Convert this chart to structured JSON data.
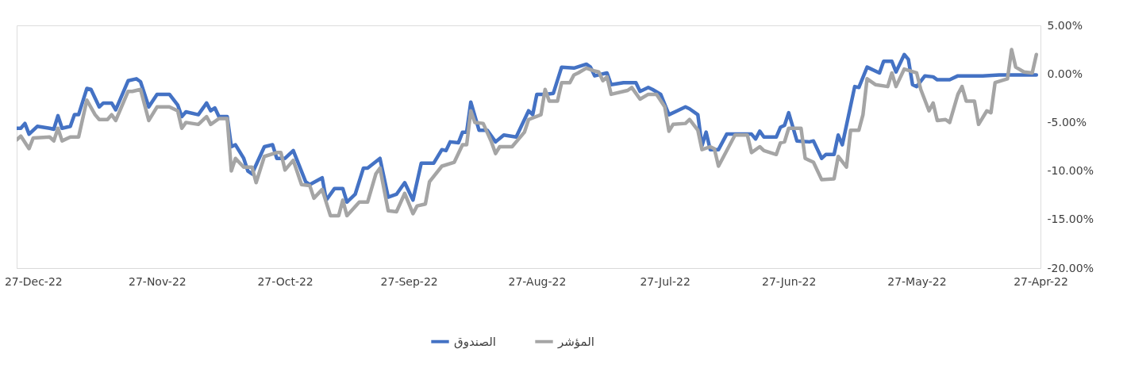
{
  "chart_data": {
    "type": "line",
    "xlim": [
      "2022-12-31",
      "2022-04-27"
    ],
    "xticks": [
      {
        "value": "2022-12-27",
        "label": "27-Dec-22"
      },
      {
        "value": "2022-11-27",
        "label": "27-Nov-22"
      },
      {
        "value": "2022-10-27",
        "label": "27-Oct-22"
      },
      {
        "value": "2022-09-27",
        "label": "27-Sep-22"
      },
      {
        "value": "2022-08-27",
        "label": "27-Aug-22"
      },
      {
        "value": "2022-07-27",
        "label": "27-Jul-22"
      },
      {
        "value": "2022-06-27",
        "label": "27-Jun-22"
      },
      {
        "value": "2022-05-27",
        "label": "27-May-22"
      },
      {
        "value": "2022-04-27",
        "label": "27-Apr-22"
      }
    ],
    "ylim": [
      -20,
      5
    ],
    "yticks": [
      {
        "value": 5,
        "label": "5.00%"
      },
      {
        "value": 0,
        "label": "0.00%"
      },
      {
        "value": -5,
        "label": "-5.00%"
      },
      {
        "value": -10,
        "label": "-10.00%"
      },
      {
        "value": -15,
        "label": "-15.00%"
      },
      {
        "value": -20,
        "label": "-20.00%"
      }
    ],
    "grid": false,
    "legend": "bottom",
    "marker": "none",
    "line_style": "solid",
    "series": [
      {
        "name": "الصندوق",
        "color": "#4472c4",
        "x": [
          "2022-12-31",
          "2022-12-30",
          "2022-12-29",
          "2022-12-28",
          "2022-12-26",
          "2022-12-23",
          "2022-12-22",
          "2022-12-21",
          "2022-12-20",
          "2022-12-18",
          "2022-12-17",
          "2022-12-16",
          "2022-12-14",
          "2022-12-13",
          "2022-12-11",
          "2022-12-10",
          "2022-12-08",
          "2022-12-07",
          "2022-12-04",
          "2022-12-02",
          "2022-12-01",
          "2022-11-29",
          "2022-11-27",
          "2022-11-24",
          "2022-11-22",
          "2022-11-21",
          "2022-11-20",
          "2022-11-17",
          "2022-11-15",
          "2022-11-14",
          "2022-11-13",
          "2022-11-12",
          "2022-11-10",
          "2022-11-09",
          "2022-11-08",
          "2022-11-06",
          "2022-11-05",
          "2022-11-04",
          "2022-11-01",
          "2022-10-30",
          "2022-10-29",
          "2022-10-27",
          "2022-10-25",
          "2022-10-22",
          "2022-10-21",
          "2022-10-18",
          "2022-10-17",
          "2022-10-15",
          "2022-10-13",
          "2022-10-12",
          "2022-10-10",
          "2022-10-08",
          "2022-10-07",
          "2022-10-04",
          "2022-10-02",
          "2022-09-30",
          "2022-09-28",
          "2022-09-26",
          "2022-09-24",
          "2022-09-21",
          "2022-09-19",
          "2022-09-18",
          "2022-09-17",
          "2022-09-15",
          "2022-09-14",
          "2022-09-13",
          "2022-09-12",
          "2022-09-10",
          "2022-09-08",
          "2022-09-06",
          "2022-09-04",
          "2022-09-01",
          "2022-08-29",
          "2022-08-28",
          "2022-08-27",
          "2022-08-25",
          "2022-08-23",
          "2022-08-21",
          "2022-08-18",
          "2022-08-15",
          "2022-08-14",
          "2022-08-13",
          "2022-08-10",
          "2022-08-09",
          "2022-08-06",
          "2022-08-03",
          "2022-08-02",
          "2022-07-31",
          "2022-07-30",
          "2022-07-28",
          "2022-07-26",
          "2022-07-24",
          "2022-07-22",
          "2022-07-21",
          "2022-07-19",
          "2022-07-18",
          "2022-07-17",
          "2022-07-16",
          "2022-07-14",
          "2022-07-12",
          "2022-07-06",
          "2022-07-05",
          "2022-07-04",
          "2022-07-03",
          "2022-06-30",
          "2022-06-29",
          "2022-06-28",
          "2022-06-27",
          "2022-06-25",
          "2022-06-22",
          "2022-06-21",
          "2022-06-19",
          "2022-06-18",
          "2022-06-16",
          "2022-06-15",
          "2022-06-14",
          "2022-06-11",
          "2022-06-10",
          "2022-06-08",
          "2022-06-05",
          "2022-06-04",
          "2022-06-02",
          "2022-06-01",
          "2022-05-30",
          "2022-05-29",
          "2022-05-28",
          "2022-05-27",
          "2022-05-25",
          "2022-05-23",
          "2022-05-22",
          "2022-05-19",
          "2022-05-17",
          "2022-05-11",
          "2022-05-07",
          "2022-04-28"
        ],
        "values": [
          -5.6,
          -5.6,
          -5.1,
          -6.2,
          -5.4,
          -5.6,
          -5.7,
          -4.3,
          -5.6,
          -5.4,
          -4.2,
          -4.2,
          -1.5,
          -1.6,
          -3.4,
          -3.0,
          -3.0,
          -3.7,
          -0.7,
          -0.5,
          -0.8,
          -3.4,
          -2.1,
          -2.1,
          -3.2,
          -4.4,
          -3.9,
          -4.2,
          -3.0,
          -3.8,
          -3.5,
          -4.4,
          -4.4,
          -7.5,
          -7.3,
          -8.7,
          -10.0,
          -10.3,
          -7.5,
          -7.3,
          -8.7,
          -8.7,
          -7.9,
          -11.1,
          -11.4,
          -10.7,
          -13.0,
          -11.8,
          -11.8,
          -13.2,
          -12.4,
          -9.7,
          -9.7,
          -8.7,
          -12.7,
          -12.4,
          -11.2,
          -13.0,
          -9.2,
          -9.2,
          -7.8,
          -7.9,
          -7.0,
          -7.1,
          -6.0,
          -6.0,
          -2.9,
          -5.8,
          -5.8,
          -7.0,
          -6.3,
          -6.5,
          -3.8,
          -4.2,
          -2.1,
          -2.1,
          -2.0,
          0.7,
          0.6,
          1.0,
          0.7,
          -0.2,
          0.1,
          -1.1,
          -0.9,
          -0.9,
          -1.8,
          -1.4,
          -1.6,
          -2.1,
          -4.2,
          -3.8,
          -3.4,
          -3.6,
          -4.2,
          -7.4,
          -6.0,
          -7.8,
          -7.8,
          -6.2,
          -6.2,
          -6.7,
          -5.9,
          -6.5,
          -6.5,
          -5.5,
          -5.3,
          -4.0,
          -6.9,
          -7.0,
          -6.9,
          -8.7,
          -8.3,
          -8.3,
          -6.3,
          -7.3,
          -1.3,
          -1.4,
          0.7,
          0.1,
          1.3,
          1.3,
          0.2,
          2.0,
          1.5,
          -1.1,
          -1.3,
          -0.2,
          -0.3,
          -0.6,
          -0.6,
          -0.2,
          -0.2,
          -0.1,
          -0.1
        ]
      },
      {
        "name": "المؤشر",
        "color": "#a5a5a5",
        "x": [
          "2022-12-31",
          "2022-12-30",
          "2022-12-28",
          "2022-12-27",
          "2022-12-23",
          "2022-12-22",
          "2022-12-21",
          "2022-12-20",
          "2022-12-18",
          "2022-12-16",
          "2022-12-14",
          "2022-12-12",
          "2022-12-11",
          "2022-12-09",
          "2022-12-08",
          "2022-12-07",
          "2022-12-04",
          "2022-12-03",
          "2022-12-01",
          "2022-11-29",
          "2022-11-27",
          "2022-11-24",
          "2022-11-22",
          "2022-11-21",
          "2022-11-20",
          "2022-11-17",
          "2022-11-15",
          "2022-11-14",
          "2022-11-12",
          "2022-11-10",
          "2022-11-09",
          "2022-11-08",
          "2022-11-06",
          "2022-11-04",
          "2022-11-03",
          "2022-11-01",
          "2022-10-29",
          "2022-10-28",
          "2022-10-27",
          "2022-10-25",
          "2022-10-23",
          "2022-10-21",
          "2022-10-20",
          "2022-10-18",
          "2022-10-16",
          "2022-10-14",
          "2022-10-13",
          "2022-10-12",
          "2022-10-09",
          "2022-10-07",
          "2022-10-05",
          "2022-10-04",
          "2022-10-02",
          "2022-09-30",
          "2022-09-28",
          "2022-09-26",
          "2022-09-25",
          "2022-09-23",
          "2022-09-22",
          "2022-09-19",
          "2022-09-16",
          "2022-09-14",
          "2022-09-13",
          "2022-09-12",
          "2022-09-11",
          "2022-09-09",
          "2022-09-07",
          "2022-09-06",
          "2022-09-05",
          "2022-09-02",
          "2022-08-30",
          "2022-08-29",
          "2022-08-26",
          "2022-08-25",
          "2022-08-24",
          "2022-08-22",
          "2022-08-21",
          "2022-08-19",
          "2022-08-18",
          "2022-08-17",
          "2022-08-15",
          "2022-08-13",
          "2022-08-12",
          "2022-08-11",
          "2022-08-10",
          "2022-08-09",
          "2022-08-05",
          "2022-08-04",
          "2022-08-02",
          "2022-07-31",
          "2022-07-29",
          "2022-07-27",
          "2022-07-26",
          "2022-07-25",
          "2022-07-22",
          "2022-07-21",
          "2022-07-19",
          "2022-07-18",
          "2022-07-16",
          "2022-07-15",
          "2022-07-14",
          "2022-07-13",
          "2022-07-10",
          "2022-07-07",
          "2022-07-06",
          "2022-07-04",
          "2022-07-03",
          "2022-06-30",
          "2022-06-29",
          "2022-06-28",
          "2022-06-27",
          "2022-06-24",
          "2022-06-23",
          "2022-06-21",
          "2022-06-19",
          "2022-06-16",
          "2022-06-15",
          "2022-06-13",
          "2022-06-12",
          "2022-06-10",
          "2022-06-09",
          "2022-06-08",
          "2022-06-06",
          "2022-06-03",
          "2022-06-02",
          "2022-06-01",
          "2022-05-30",
          "2022-05-27",
          "2022-05-26",
          "2022-05-24",
          "2022-05-23",
          "2022-05-22",
          "2022-05-20",
          "2022-05-19",
          "2022-05-17",
          "2022-05-16",
          "2022-05-15",
          "2022-05-13",
          "2022-05-12",
          "2022-05-10",
          "2022-05-09",
          "2022-05-08",
          "2022-05-05",
          "2022-05-04",
          "2022-05-03",
          "2022-05-01",
          "2022-04-29",
          "2022-04-28"
        ],
        "values": [
          -6.8,
          -6.4,
          -7.7,
          -6.6,
          -6.5,
          -6.9,
          -5.6,
          -6.9,
          -6.5,
          -6.5,
          -2.7,
          -4.2,
          -4.7,
          -4.7,
          -4.2,
          -4.8,
          -1.8,
          -1.8,
          -1.6,
          -4.8,
          -3.4,
          -3.4,
          -3.8,
          -5.6,
          -5.0,
          -5.2,
          -4.4,
          -5.2,
          -4.6,
          -4.6,
          -10.0,
          -8.7,
          -9.6,
          -9.6,
          -11.2,
          -8.5,
          -8.1,
          -8.1,
          -9.9,
          -8.9,
          -11.4,
          -11.5,
          -12.8,
          -11.9,
          -14.6,
          -14.6,
          -13.0,
          -14.6,
          -13.2,
          -13.2,
          -10.3,
          -9.7,
          -14.1,
          -14.2,
          -12.3,
          -14.4,
          -13.6,
          -13.4,
          -11.1,
          -9.5,
          -9.1,
          -7.3,
          -7.3,
          -3.8,
          -5.0,
          -5.1,
          -7.0,
          -8.2,
          -7.5,
          -7.5,
          -6.0,
          -4.7,
          -4.2,
          -1.6,
          -2.8,
          -2.8,
          -0.9,
          -0.9,
          -0.1,
          0.1,
          0.6,
          0.3,
          0.2,
          -0.7,
          -0.3,
          -2.1,
          -1.7,
          -1.4,
          -2.6,
          -2.1,
          -2.1,
          -3.4,
          -5.9,
          -5.2,
          -5.1,
          -4.7,
          -5.8,
          -7.8,
          -7.5,
          -7.7,
          -9.5,
          -8.7,
          -6.3,
          -6.3,
          -8.1,
          -7.5,
          -7.9,
          -8.3,
          -7.1,
          -7.0,
          -5.6,
          -5.6,
          -8.7,
          -9.1,
          -10.9,
          -10.8,
          -8.5,
          -9.6,
          -5.8,
          -5.8,
          -4.2,
          -0.5,
          -1.1,
          -1.3,
          0.1,
          -1.3,
          0.5,
          0.1,
          -1.6,
          -3.8,
          -3.0,
          -4.8,
          -4.7,
          -5.0,
          -2.1,
          -1.3,
          -2.8,
          -2.8,
          -5.2,
          -3.8,
          -4.0,
          -0.9,
          -0.5,
          2.5,
          0.7,
          0.2,
          0.1,
          2.0
        ]
      }
    ]
  }
}
